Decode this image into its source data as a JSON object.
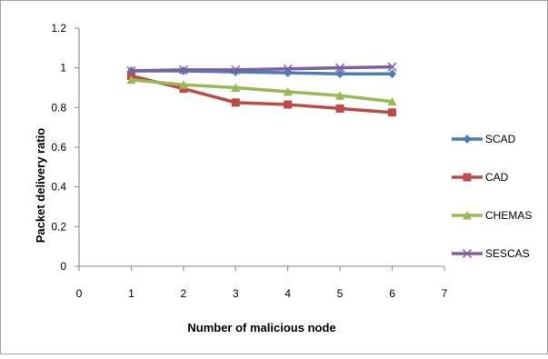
{
  "chart_data": {
    "type": "line",
    "title": "",
    "xlabel": "Number of malicious node",
    "ylabel": "Packet delivery ratio",
    "xlim": [
      0,
      7
    ],
    "ylim": [
      0,
      1.2
    ],
    "x_ticks": [
      "0",
      "1",
      "2",
      "3",
      "4",
      "5",
      "6",
      "7"
    ],
    "y_ticks": [
      "0",
      "0.2",
      "0.4",
      "0.6",
      "0.8",
      "1",
      "1.2"
    ],
    "grid": false,
    "legend_position": "right",
    "x": [
      1,
      2,
      3,
      4,
      5,
      6
    ],
    "series": [
      {
        "name": "SCAD",
        "values": [
          0.985,
          0.985,
          0.98,
          0.975,
          0.97,
          0.97
        ],
        "color": "#4a7ebb",
        "marker": "diamond"
      },
      {
        "name": "CAD",
        "values": [
          0.96,
          0.895,
          0.825,
          0.815,
          0.795,
          0.775
        ],
        "color": "#be4b48",
        "marker": "square"
      },
      {
        "name": "CHEMAS",
        "values": [
          0.94,
          0.915,
          0.9,
          0.88,
          0.86,
          0.83
        ],
        "color": "#98b954",
        "marker": "triangle"
      },
      {
        "name": "SESCAS",
        "values": [
          0.985,
          0.99,
          0.99,
          0.995,
          1.0,
          1.005
        ],
        "color": "#7d60a0",
        "marker": "x"
      }
    ]
  }
}
